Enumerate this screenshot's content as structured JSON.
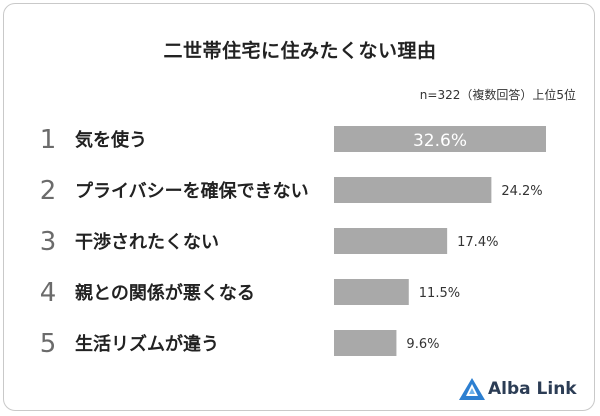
{
  "title": "二世帯住宅に住みたくない理由",
  "note": "n=322（複数回答）上位5位",
  "logo": {
    "text": "Alba Link",
    "icon": "triangle-logo-icon",
    "color": "#2c7fd1"
  },
  "colors": {
    "bar": "#a9a9a9",
    "rank": "#6b6b6b",
    "label": "#222222",
    "value_outside": "#333333",
    "value_inside": "#ffffff"
  },
  "chart_data": {
    "type": "bar",
    "orientation": "horizontal",
    "ranks": [
      "1",
      "2",
      "3",
      "4",
      "5"
    ],
    "categories": [
      "気を使う",
      "プライバシーを確保できない",
      "干渉されたくない",
      "親との関係が悪くなる",
      "生活リズムが違う"
    ],
    "values": [
      32.6,
      24.2,
      17.4,
      11.5,
      9.6
    ],
    "value_labels": [
      "32.6%",
      "24.2%",
      "17.4%",
      "11.5%",
      "9.6%"
    ],
    "unit": "%",
    "xlim": [
      0,
      32.6
    ],
    "grid": false,
    "legend": "none"
  }
}
